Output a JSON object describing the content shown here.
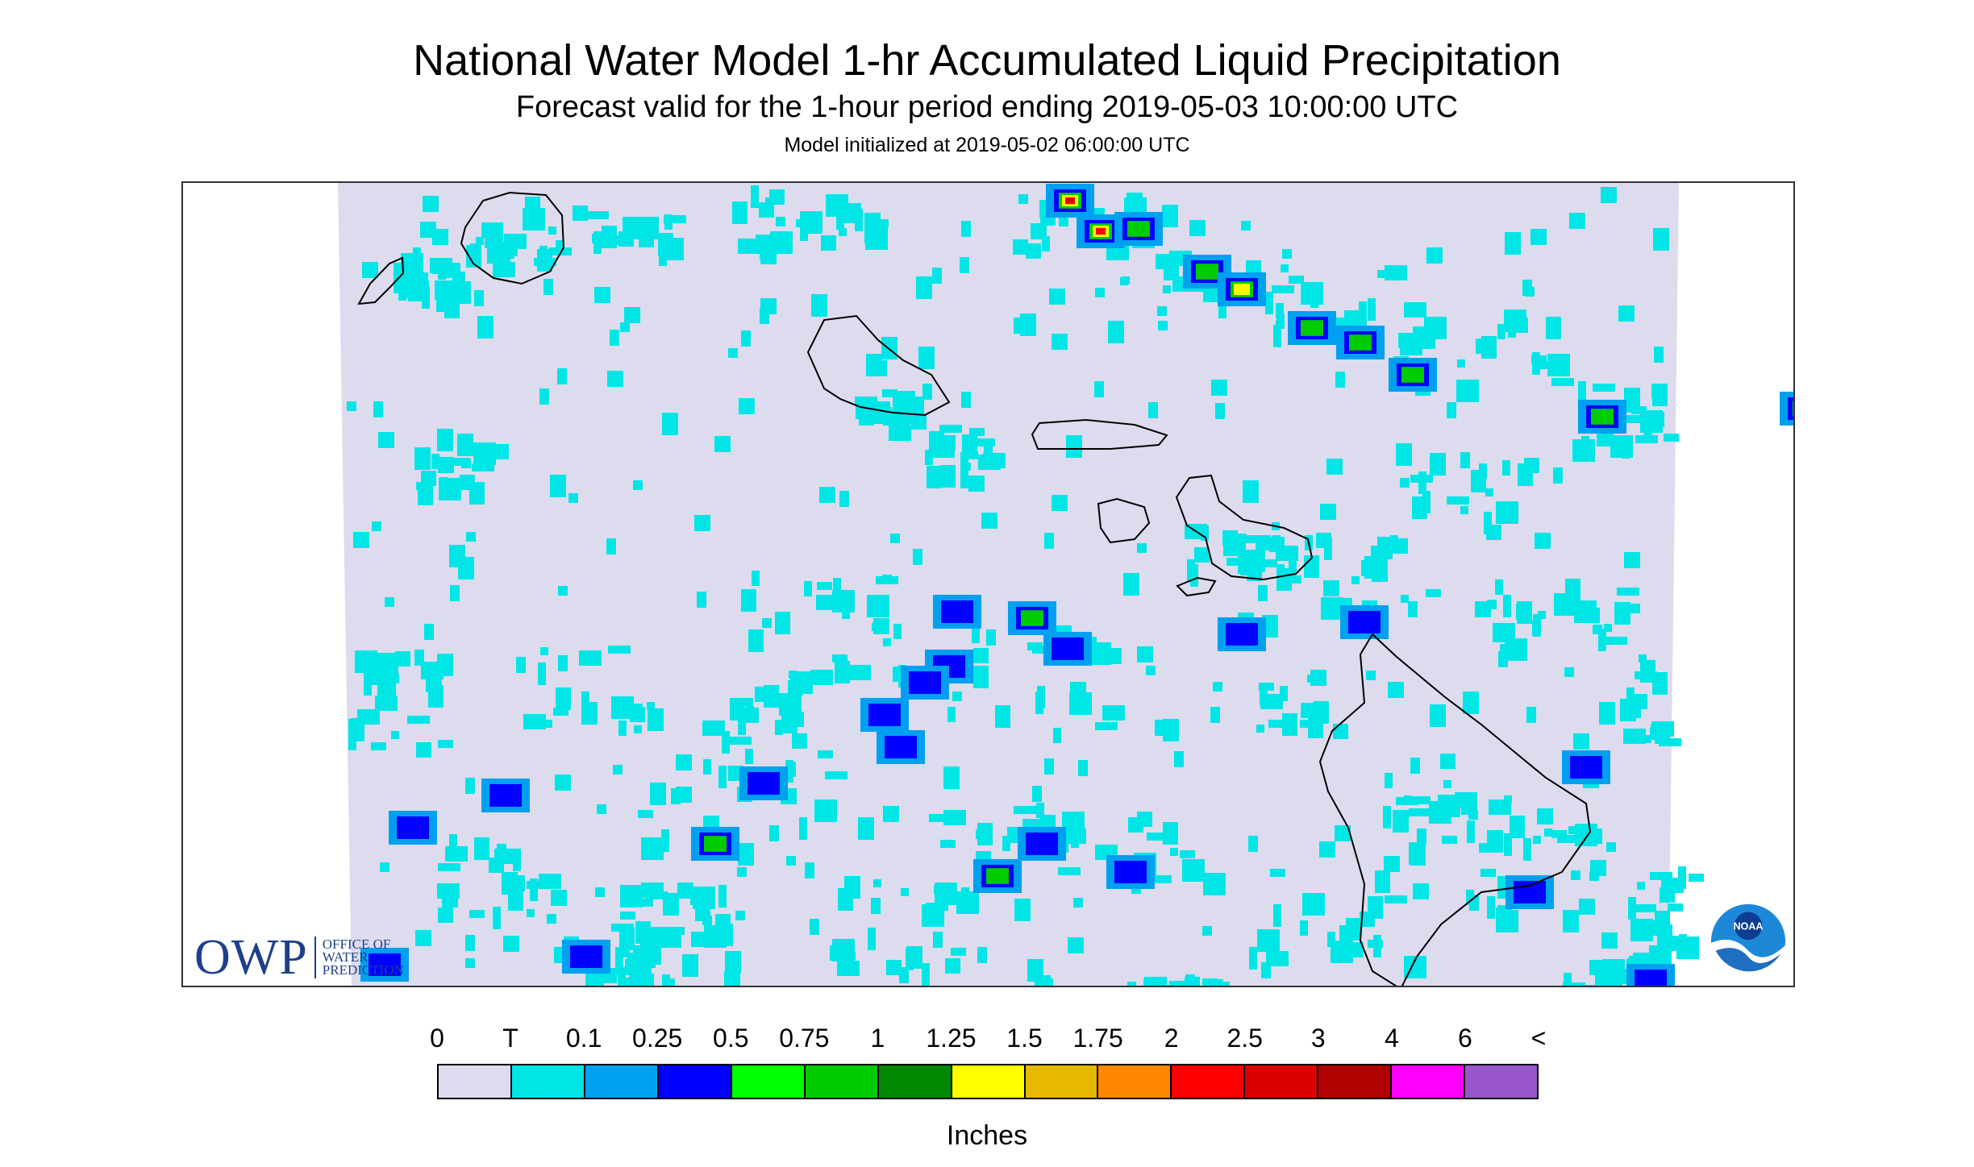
{
  "title": "National Water Model 1-hr Accumulated Liquid Precipitation",
  "subtitle": "Forecast valid for the 1-hour period ending 2019-05-03 10:00:00 UTC",
  "init_line": "Model initialized at 2019-05-02 06:00:00 UTC",
  "logos": {
    "owp_mark": "OWP",
    "owp_text": [
      "OFFICE OF",
      "WATER",
      "PREDICTION"
    ],
    "noaa": "NOAA"
  },
  "legend": {
    "labels": [
      "0",
      "T",
      "0.1",
      "0.25",
      "0.5",
      "0.75",
      "1",
      "1.25",
      "1.5",
      "1.75",
      "2",
      "2.5",
      "3",
      "4",
      "6",
      "<"
    ],
    "colors": [
      "#dcdcee",
      "#00e6e6",
      "#00a0f0",
      "#0000ff",
      "#00ff00",
      "#00cc00",
      "#008800",
      "#ffff00",
      "#e6b800",
      "#ff8800",
      "#ff0000",
      "#dd0000",
      "#b00000",
      "#ff00ff",
      "#9955cc"
    ],
    "units": "Inches"
  },
  "map": {
    "region": "Hawaiian Islands",
    "background_color": "#dcdcee",
    "light_precip_color": "#00e6e6",
    "coastline_color": "#000000"
  }
}
